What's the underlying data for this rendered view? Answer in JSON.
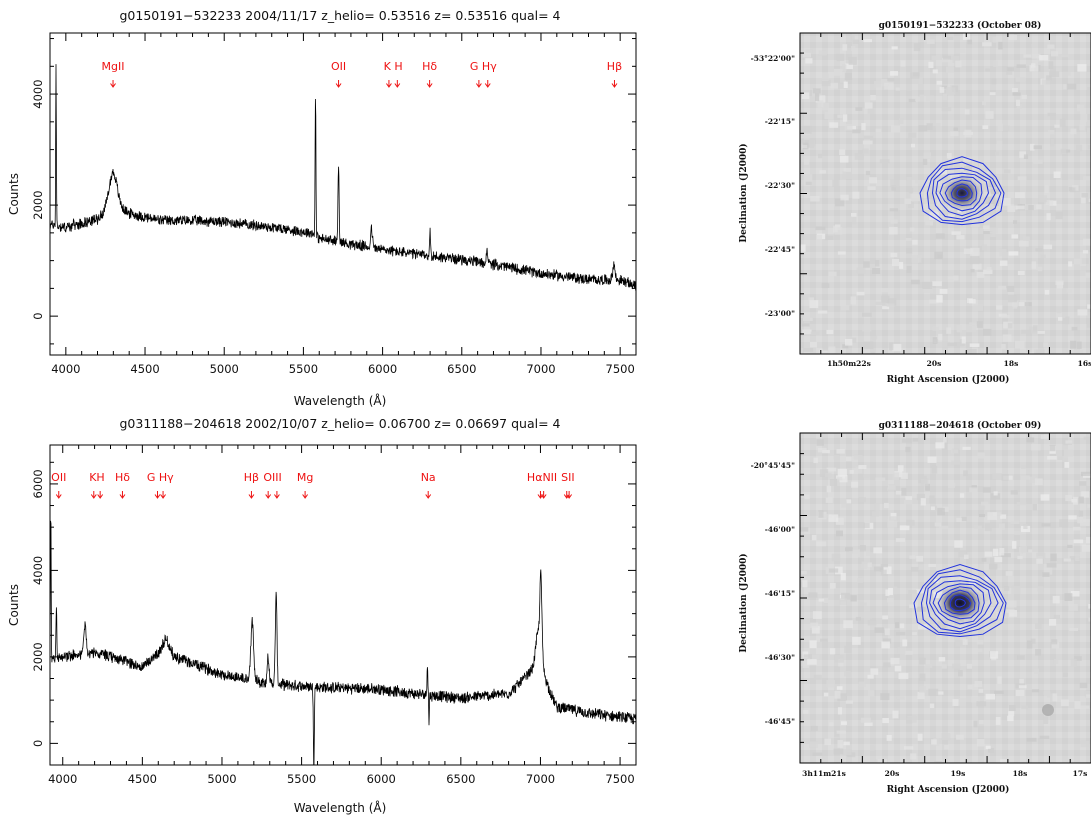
{
  "chart_data": [
    {
      "type": "line",
      "title": "g0150191−532233 2004/11/17 z_helio= 0.53516 z= 0.53516 qual= 4",
      "xlabel": "Wavelength (Å)",
      "ylabel": "Counts",
      "xlim": [
        3900,
        7600
      ],
      "ylim": [
        -700,
        5100
      ],
      "xticks": [
        4000,
        4500,
        5000,
        5500,
        6000,
        6500,
        7000,
        7500
      ],
      "yticks": [
        0,
        2000,
        4000
      ],
      "line_color": "#000000",
      "marker_color": "#ee1111",
      "line_markers": [
        {
          "label": "MgII",
          "arrows": [
            4298
          ]
        },
        {
          "label": "OII",
          "arrows": [
            5722
          ]
        },
        {
          "label": "K H",
          "arrows": [
            6040,
            6093
          ]
        },
        {
          "label": "Hδ",
          "arrows": [
            6297
          ]
        },
        {
          "label": "G  Hγ",
          "arrows": [
            6608,
            6664
          ]
        },
        {
          "label": "Hβ",
          "arrows": [
            7464
          ]
        }
      ],
      "series": [
        {
          "baseline": [
            [
              3900,
              1650
            ],
            [
              4000,
              1600
            ],
            [
              4200,
              1750
            ],
            [
              4300,
              2050
            ],
            [
              4400,
              1850
            ],
            [
              4600,
              1720
            ],
            [
              4800,
              1720
            ],
            [
              5000,
              1700
            ],
            [
              5300,
              1600
            ],
            [
              5550,
              1500
            ],
            [
              5600,
              1400
            ],
            [
              5800,
              1300
            ],
            [
              6000,
              1200
            ],
            [
              6200,
              1120
            ],
            [
              6500,
              1020
            ],
            [
              6800,
              880
            ],
            [
              7000,
              770
            ],
            [
              7300,
              660
            ],
            [
              7500,
              650
            ],
            [
              7600,
              540
            ]
          ],
          "features": [
            {
              "x": 3938,
              "amp": 2900,
              "w": 3
            },
            {
              "x": 4298,
              "amp": 550,
              "w": 35
            },
            {
              "x": 5577,
              "amp": 2800,
              "w": 4
            },
            {
              "x": 5580,
              "amp": -700,
              "w": 3
            },
            {
              "x": 5722,
              "amp": 1400,
              "w": 5
            },
            {
              "x": 5930,
              "amp": 350,
              "w": 8
            },
            {
              "x": 6300,
              "amp": 450,
              "w": 4
            },
            {
              "x": 6660,
              "amp": 280,
              "w": 6
            },
            {
              "x": 7460,
              "amp": 280,
              "w": 10
            }
          ],
          "noise": 110,
          "step": 2
        }
      ]
    },
    {
      "type": "line",
      "title": "g0311188−204618 2002/10/07 z_helio= 0.06700 z= 0.06697 qual= 4",
      "xlabel": "Wavelength (Å)",
      "ylabel": "Counts",
      "xlim": [
        3920,
        7600
      ],
      "ylim": [
        -500,
        6900
      ],
      "xticks": [
        4000,
        4500,
        5000,
        5500,
        6000,
        6500,
        7000,
        7500
      ],
      "yticks": [
        0,
        2000,
        4000,
        6000
      ],
      "line_color": "#000000",
      "marker_color": "#ee1111",
      "line_markers": [
        {
          "label": "OII",
          "arrows": [
            3975
          ]
        },
        {
          "label": "KH",
          "arrows": [
            4195,
            4235
          ]
        },
        {
          "label": "Hδ",
          "arrows": [
            4375
          ]
        },
        {
          "label": "G  Hγ",
          "arrows": [
            4595,
            4630
          ]
        },
        {
          "label": "Hβ",
          "arrows": [
            5185
          ]
        },
        {
          "label": "OIII",
          "arrows": [
            5290,
            5345
          ]
        },
        {
          "label": "Mg",
          "arrows": [
            5522
          ]
        },
        {
          "label": "Na",
          "arrows": [
            6295
          ]
        },
        {
          "label": "HαNII",
          "arrows": [
            7000,
            7020
          ]
        },
        {
          "label": "SII",
          "arrows": [
            7165,
            7180
          ]
        }
      ],
      "series": [
        {
          "baseline": [
            [
              3920,
              1900
            ],
            [
              4000,
              2000
            ],
            [
              4200,
              2100
            ],
            [
              4400,
              1900
            ],
            [
              4500,
              1750
            ],
            [
              4600,
              2100
            ],
            [
              4700,
              2000
            ],
            [
              5000,
              1600
            ],
            [
              5200,
              1450
            ],
            [
              5400,
              1350
            ],
            [
              5600,
              1300
            ],
            [
              6000,
              1250
            ],
            [
              6200,
              1150
            ],
            [
              6500,
              1050
            ],
            [
              6800,
              1150
            ],
            [
              6900,
              1500
            ],
            [
              7000,
              1900
            ],
            [
              7050,
              1300
            ],
            [
              7100,
              850
            ],
            [
              7300,
              700
            ],
            [
              7600,
              560
            ]
          ],
          "features": [
            {
              "x": 3925,
              "amp": 3500,
              "w": 3
            },
            {
              "x": 3960,
              "amp": 1200,
              "w": 4
            },
            {
              "x": 4140,
              "amp": 700,
              "w": 10
            },
            {
              "x": 4650,
              "amp": 350,
              "w": 30
            },
            {
              "x": 5190,
              "amp": 1350,
              "w": 12
            },
            {
              "x": 5290,
              "amp": 600,
              "w": 8
            },
            {
              "x": 5340,
              "amp": 2100,
              "w": 7
            },
            {
              "x": 5577,
              "amp": -1950,
              "w": 4
            },
            {
              "x": 6290,
              "amp": 750,
              "w": 4
            },
            {
              "x": 6300,
              "amp": -650,
              "w": 3
            },
            {
              "x": 7003,
              "amp": 1700,
              "w": 9
            },
            {
              "x": 6985,
              "amp": 700,
              "w": 22
            }
          ],
          "noise": 150,
          "step": 2
        }
      ]
    }
  ],
  "images": [
    {
      "title": "g0150191−532233 (October 08)",
      "xlabel": "Right Ascension (J2000)",
      "ylabel": "Declination (J2000)",
      "yticks": [
        "-53°22'00\"",
        "-22'15\"",
        "-22'30\"",
        "-22'45\"",
        "-23'00\""
      ],
      "xticks": [
        "1h50m22s",
        "20s",
        "18s",
        "16s"
      ],
      "contour_color": "#2233dd"
    },
    {
      "title": "g0311188−204618 (October 09)",
      "xlabel": "Right Ascension (J2000)",
      "ylabel": "Declination (J2000)",
      "yticks": [
        "-20°45'45\"",
        "-46'00\"",
        "-46'15\"",
        "-46'30\"",
        "-46'45\""
      ],
      "xticks": [
        "3h11m21s",
        "20s",
        "19s",
        "18s",
        "17s"
      ],
      "contour_color": "#2233dd"
    }
  ]
}
